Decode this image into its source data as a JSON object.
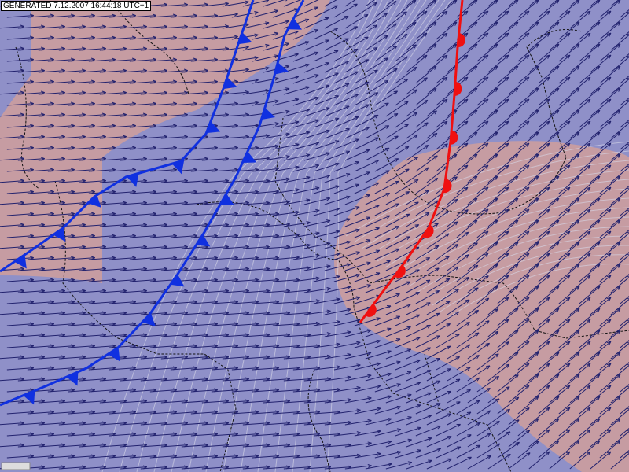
{
  "header": {
    "generated": "GENERATED 7.12.2007 16:44:18 UTC+1"
  }
}
